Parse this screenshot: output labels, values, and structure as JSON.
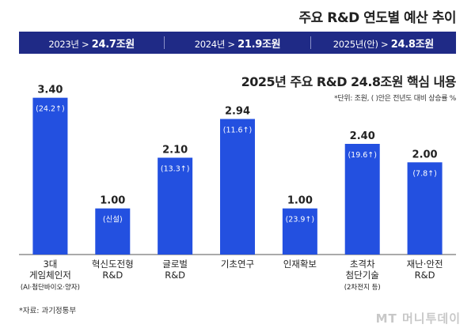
{
  "title": "주요 R&D 연도별 예산 추이",
  "band": [
    {
      "label": "2023년 > ",
      "value": "24.7조원"
    },
    {
      "label": "2024년 > ",
      "value": "21.9조원"
    },
    {
      "label": "2025년(안) > ",
      "value": "24.8조원"
    }
  ],
  "subtitle": "2025년 주요 R&D 24.8조원 핵심 내용",
  "unit_note": "*단위: 조원, ( )안은 전년도 대비 상승률 %",
  "source": "*자료: 과기정통부",
  "logo": "MT 머니투데이",
  "colors": {
    "bar": "#2350e0",
    "band": "#1f2a86",
    "axis": "#555555"
  },
  "chart_data": {
    "type": "bar",
    "title": "2025년 주요 R&D 24.8조원 핵심 내용",
    "ylim": [
      0,
      3.6
    ],
    "grid": false,
    "categories": [
      [
        "3대",
        "게임체인저",
        "(AI·첨단바이오·양자)"
      ],
      [
        "혁신도전형",
        "R&D"
      ],
      [
        "글로벌",
        "R&D"
      ],
      [
        "기초연구"
      ],
      [
        "인재확보"
      ],
      [
        "초격차",
        "첨단기술",
        "(2차전지 등)"
      ],
      [
        "재난·안전",
        "R&D"
      ]
    ],
    "values": [
      3.4,
      1.0,
      2.1,
      2.94,
      1.0,
      2.4,
      2.0
    ],
    "value_labels": [
      "3.40",
      "1.00",
      "2.10",
      "2.94",
      "1.00",
      "2.40",
      "2.00"
    ],
    "bar_labels": [
      "(24.2↑)",
      "(신설)",
      "(13.3↑)",
      "(11.6↑)",
      "(23.9↑)",
      "(19.6↑)",
      "(7.8↑)"
    ]
  }
}
